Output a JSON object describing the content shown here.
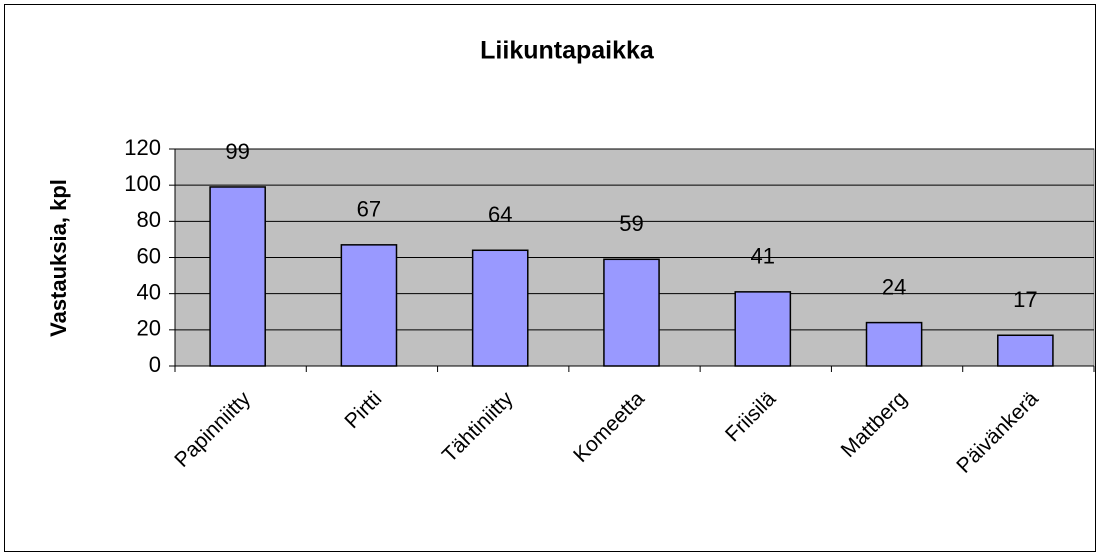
{
  "chart_data": {
    "type": "bar",
    "title": "Liikuntapaikka",
    "y_label": "Vastauksia, kpl",
    "categories": [
      "Papinniitty",
      "Pirtti",
      "Tähtiniitty",
      "Komeetta",
      "Friisilä",
      "Mattberg",
      "Päivänkerä"
    ],
    "values": [
      99,
      67,
      64,
      59,
      41,
      24,
      17
    ],
    "color": "#9999ff",
    "ylim": [
      0,
      120
    ],
    "yticks": [
      0,
      20,
      40,
      60,
      80,
      100,
      120
    ],
    "grid": true
  }
}
